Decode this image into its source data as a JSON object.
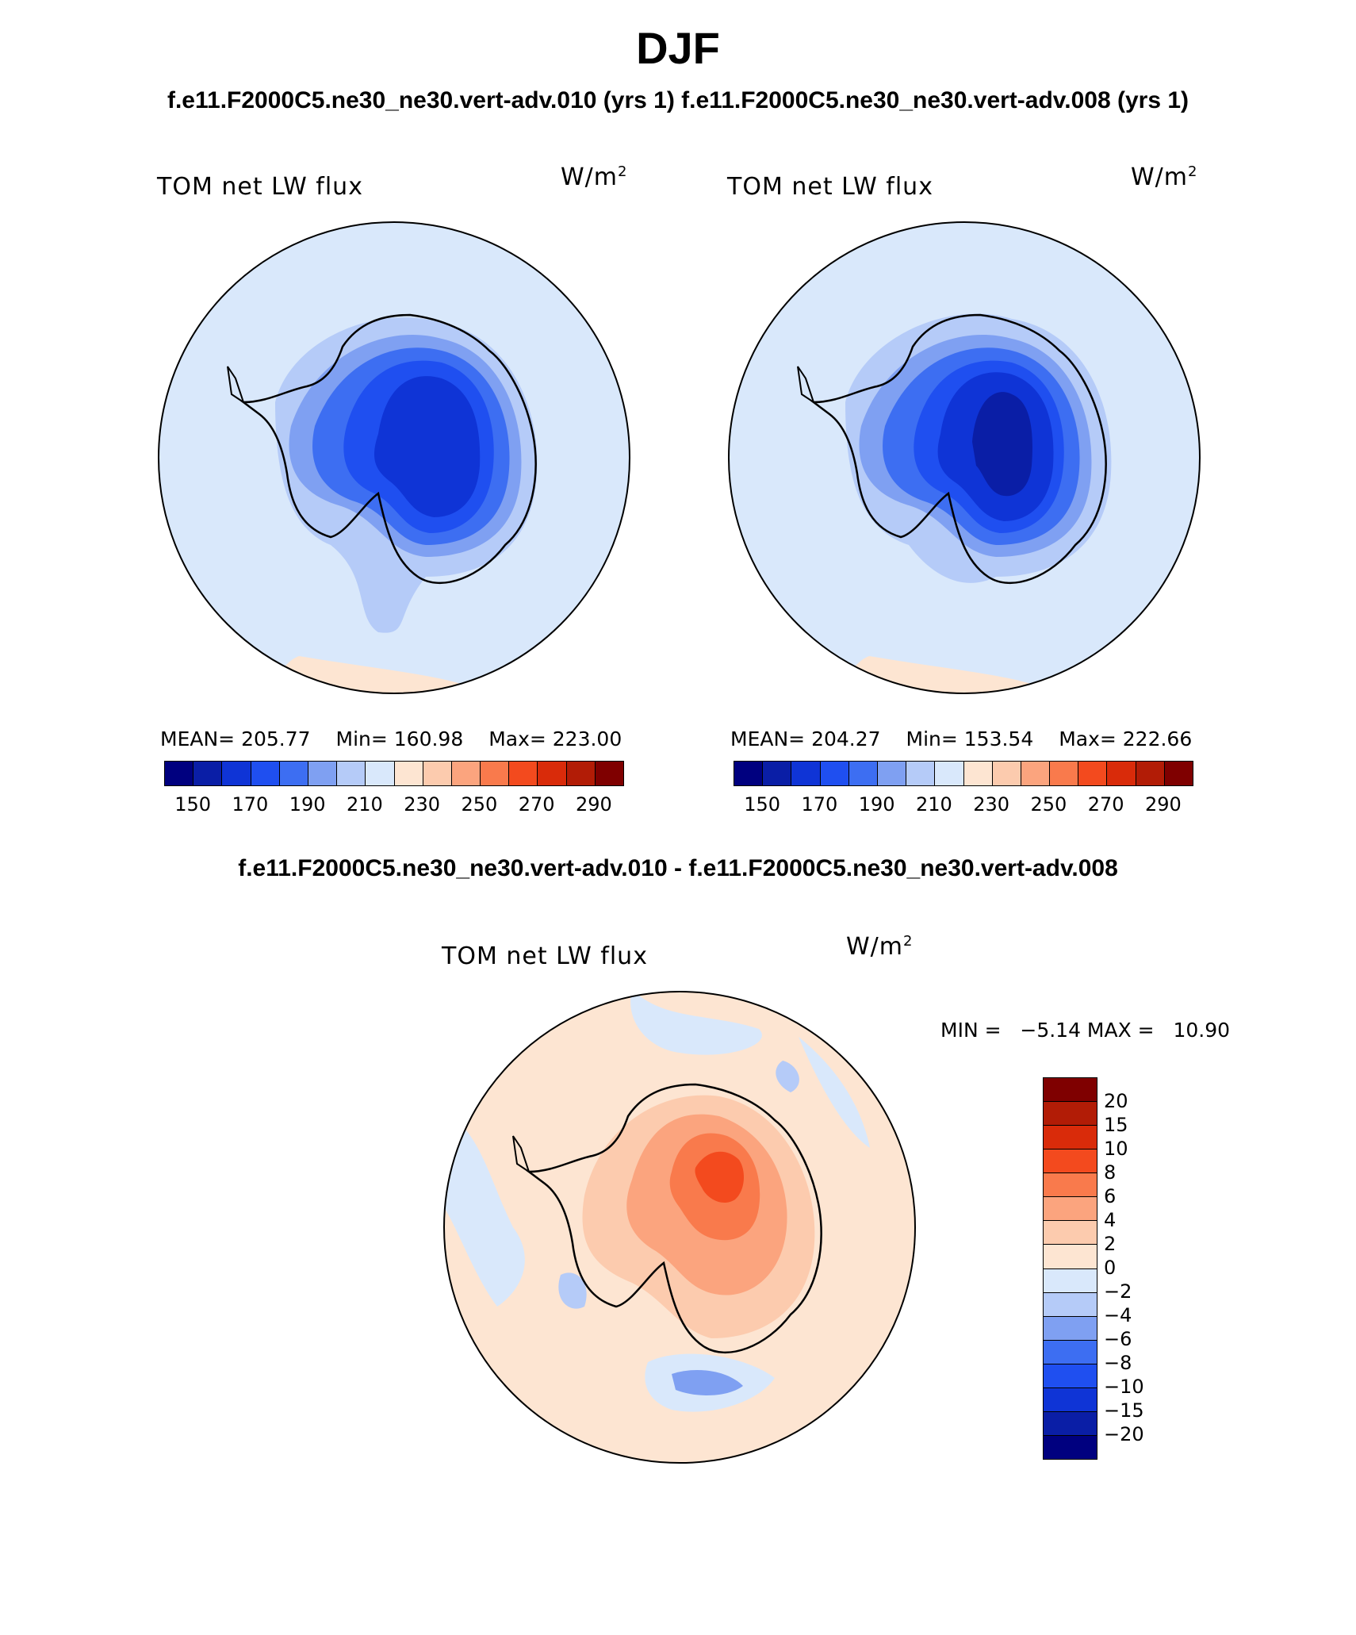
{
  "figure": {
    "title": "DJF",
    "subtitle_left": "f.e11.F2000C5.ne30_ne30.vert-adv.010 (yrs 1)",
    "subtitle_right": "f.e11.F2000C5.ne30_ne30.vert-adv.008 (yrs 1)",
    "diff_title": "f.e11.F2000C5.ne30_ne30.vert-adv.010 - f.e11.F2000C5.ne30_ne30.vert-adv.008"
  },
  "panels": [
    {
      "variable": "TOM net LW flux",
      "units_base": "W/m",
      "units_exp": "2",
      "mean_label": "MEAN= 205.77",
      "min_label": "Min= 160.98",
      "max_label": "Max= 223.00",
      "interior_level": 3
    },
    {
      "variable": "TOM net LW flux",
      "units_base": "W/m",
      "units_exp": "2",
      "mean_label": "MEAN= 204.27",
      "min_label": "Min= 153.54",
      "max_label": "Max= 222.66",
      "interior_level": 2
    }
  ],
  "diff_panel": {
    "variable": "TOM net LW flux",
    "units_base": "W/m",
    "units_exp": "2",
    "minmax_label": "MIN =   −5.14 MAX =   10.90"
  },
  "colorbar_abs": {
    "tick_labels": [
      "150",
      "170",
      "190",
      "210",
      "230",
      "250",
      "270",
      "290"
    ],
    "colors": [
      "#00007f",
      "#0a1ea6",
      "#0f34d6",
      "#1f4ff0",
      "#3d6ef2",
      "#7fa0f2",
      "#b5cbf8",
      "#d9e8fb",
      "#fde5d2",
      "#fccbae",
      "#fba47e",
      "#f97a4c",
      "#f34a1e",
      "#d92b0a",
      "#b21c06",
      "#7f0000"
    ]
  },
  "colorbar_diff": {
    "tick_labels": [
      "20",
      "15",
      "10",
      "8",
      "6",
      "4",
      "2",
      "0",
      "−2",
      "−4",
      "−6",
      "−8",
      "−10",
      "−15",
      "−20"
    ],
    "colors": [
      "#7f0000",
      "#b21c06",
      "#d92b0a",
      "#f34a1e",
      "#f97a4c",
      "#fba47e",
      "#fccbae",
      "#fde5d2",
      "#d9e8fb",
      "#b5cbf8",
      "#7fa0f2",
      "#3d6ef2",
      "#1f4ff0",
      "#0f34d6",
      "#0a1ea6",
      "#00007f"
    ]
  },
  "chart_data": [
    {
      "type": "heatmap",
      "title": "TOM net LW flux",
      "units": "W/m2",
      "projection": "south polar stereographic",
      "levels": [
        150,
        160,
        170,
        180,
        190,
        200,
        210,
        220,
        230,
        240,
        250,
        260,
        270,
        280,
        290
      ],
      "mean": 205.77,
      "min": 160.98,
      "max": 223.0
    },
    {
      "type": "heatmap",
      "title": "TOM net LW flux",
      "units": "W/m2",
      "projection": "south polar stereographic",
      "levels": [
        150,
        160,
        170,
        180,
        190,
        200,
        210,
        220,
        230,
        240,
        250,
        260,
        270,
        280,
        290
      ],
      "mean": 204.27,
      "min": 153.54,
      "max": 222.66
    },
    {
      "type": "heatmap",
      "title": "TOM net LW flux (difference)",
      "units": "W/m2",
      "projection": "south polar stereographic",
      "levels": [
        -20,
        -15,
        -10,
        -8,
        -6,
        -4,
        -2,
        0,
        2,
        4,
        6,
        8,
        10,
        15,
        20
      ],
      "min": -5.14,
      "max": 10.9
    }
  ]
}
